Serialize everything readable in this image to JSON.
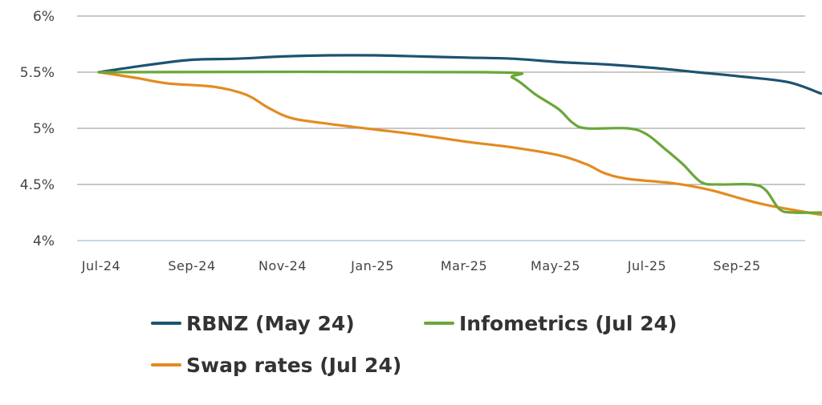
{
  "chart_data": {
    "type": "line",
    "x_ticks": [
      "Jul-24",
      "Sep-24",
      "Nov-24",
      "Jan-25",
      "Mar-25",
      "May-25",
      "Jul-25",
      "Sep-25"
    ],
    "y_ticks": [
      "6%",
      "5.5%",
      "5%",
      "4.5%",
      "4%"
    ],
    "ylim": [
      4,
      6
    ],
    "xlim": [
      0,
      15.8
    ],
    "grid": true,
    "legend_position": "bottom",
    "series": [
      {
        "name": "RBNZ (May 24)",
        "color": "#1d5272",
        "points": [
          [
            0,
            5.5
          ],
          [
            1,
            5.56
          ],
          [
            2,
            5.61
          ],
          [
            3,
            5.62
          ],
          [
            4,
            5.64
          ],
          [
            5,
            5.65
          ],
          [
            6,
            5.65
          ],
          [
            7,
            5.64
          ],
          [
            8,
            5.63
          ],
          [
            9,
            5.62
          ],
          [
            10,
            5.59
          ],
          [
            11,
            5.57
          ],
          [
            12,
            5.54
          ],
          [
            13,
            5.5
          ],
          [
            14,
            5.46
          ],
          [
            15,
            5.41
          ],
          [
            15.7,
            5.31
          ]
        ]
      },
      {
        "name": "Infometrics (Jul 24)",
        "color": "#6aa639",
        "points": [
          [
            0,
            5.5
          ],
          [
            8.4,
            5.5
          ],
          [
            9,
            5.45
          ],
          [
            9.5,
            5.3
          ],
          [
            10,
            5.17
          ],
          [
            10.3,
            5.05
          ],
          [
            10.6,
            5.0
          ],
          [
            11.5,
            5.0
          ],
          [
            11.9,
            4.95
          ],
          [
            12.3,
            4.82
          ],
          [
            12.7,
            4.68
          ],
          [
            13.1,
            4.52
          ],
          [
            13.5,
            4.5
          ],
          [
            14.2,
            4.5
          ],
          [
            14.5,
            4.45
          ],
          [
            14.8,
            4.28
          ],
          [
            15.1,
            4.25
          ],
          [
            15.7,
            4.25
          ]
        ]
      },
      {
        "name": "Swap rates (Jul 24)",
        "color": "#e38b20",
        "points": [
          [
            0,
            5.5
          ],
          [
            0.8,
            5.45
          ],
          [
            1.5,
            5.4
          ],
          [
            2.5,
            5.37
          ],
          [
            3.2,
            5.3
          ],
          [
            3.7,
            5.18
          ],
          [
            4.2,
            5.09
          ],
          [
            5,
            5.04
          ],
          [
            6,
            4.99
          ],
          [
            7,
            4.94
          ],
          [
            8,
            4.88
          ],
          [
            9,
            4.83
          ],
          [
            10,
            4.76
          ],
          [
            10.6,
            4.68
          ],
          [
            11,
            4.6
          ],
          [
            11.5,
            4.55
          ],
          [
            12.5,
            4.51
          ],
          [
            13.3,
            4.45
          ],
          [
            14,
            4.37
          ],
          [
            14.6,
            4.31
          ],
          [
            15.7,
            4.23
          ]
        ]
      }
    ]
  }
}
